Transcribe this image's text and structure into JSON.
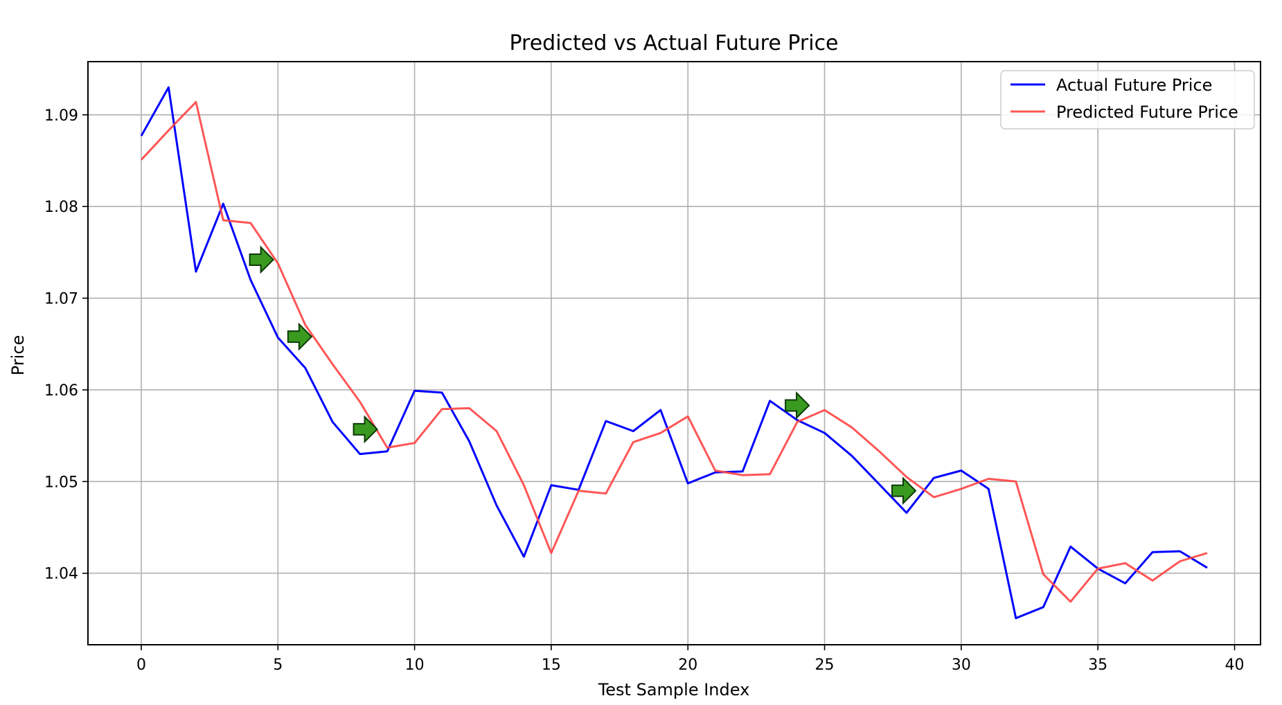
{
  "chart_data": {
    "type": "line",
    "title": "Predicted vs Actual Future Price",
    "xlabel": "Test Sample Index",
    "ylabel": "Price",
    "xlim": [
      -1.95,
      40.95
    ],
    "ylim": [
      1.0322,
      1.0958
    ],
    "xticks": [
      0,
      5,
      10,
      15,
      20,
      25,
      30,
      35,
      40
    ],
    "yticks": [
      1.04,
      1.05,
      1.06,
      1.07,
      1.08,
      1.09
    ],
    "grid": true,
    "legend_position": "top-right",
    "x": [
      0,
      1,
      2,
      3,
      4,
      5,
      6,
      7,
      8,
      9,
      10,
      11,
      12,
      13,
      14,
      15,
      16,
      17,
      18,
      19,
      20,
      21,
      22,
      23,
      24,
      25,
      26,
      27,
      28,
      29,
      30,
      31,
      32,
      33,
      34,
      35,
      36,
      37,
      38,
      39
    ],
    "series": [
      {
        "name": "Actual Future Price",
        "color": "#0000ff",
        "values": [
          1.0877,
          1.093,
          1.0729,
          1.0803,
          1.072,
          1.0657,
          1.0624,
          1.0565,
          1.053,
          1.0533,
          1.0599,
          1.0597,
          1.0544,
          1.0474,
          1.0418,
          1.0496,
          1.0491,
          1.0566,
          1.0555,
          1.0578,
          1.0498,
          1.051,
          1.0511,
          1.0588,
          1.0567,
          1.0553,
          1.0528,
          1.0497,
          1.0466,
          1.0504,
          1.0512,
          1.0492,
          1.0351,
          1.0363,
          1.0429,
          1.0405,
          1.0389,
          1.0423,
          1.0424,
          1.0406
        ]
      },
      {
        "name": "Predicted Future Price",
        "color": "#ff4444",
        "values": [
          1.0851,
          1.0883,
          1.0914,
          1.0785,
          1.0782,
          1.0738,
          1.0671,
          1.0628,
          1.0587,
          1.0537,
          1.0542,
          1.0579,
          1.058,
          1.0555,
          1.0496,
          1.0422,
          1.049,
          1.0487,
          1.0543,
          1.0553,
          1.0571,
          1.0512,
          1.0507,
          1.0508,
          1.0565,
          1.0578,
          1.0559,
          1.0533,
          1.0505,
          1.0483,
          1.0492,
          1.0503,
          1.05,
          1.0399,
          1.0369,
          1.0405,
          1.0411,
          1.0392,
          1.0413,
          1.0422
        ]
      }
    ],
    "markers": [
      {
        "type": "arrow-right",
        "color": "#3a9a20",
        "x": 4.4,
        "y": 1.0742
      },
      {
        "type": "arrow-right",
        "color": "#3a9a20",
        "x": 5.8,
        "y": 1.0658
      },
      {
        "type": "arrow-right",
        "color": "#3a9a20",
        "x": 8.2,
        "y": 1.0557
      },
      {
        "type": "arrow-right",
        "color": "#3a9a20",
        "x": 24.0,
        "y": 1.0583
      },
      {
        "type": "arrow-right",
        "color": "#3a9a20",
        "x": 27.9,
        "y": 1.049
      }
    ]
  }
}
